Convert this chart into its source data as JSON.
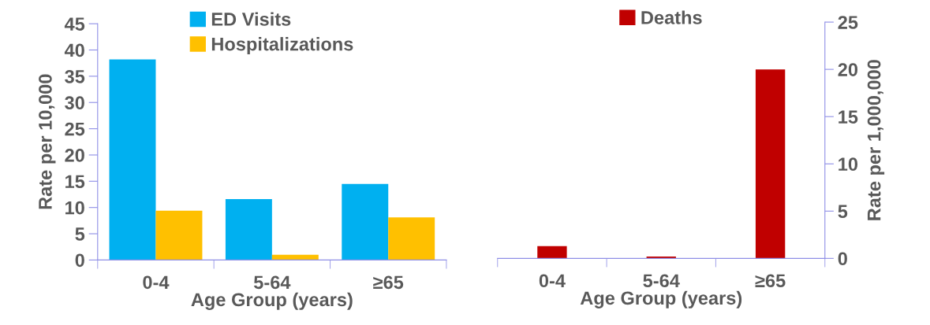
{
  "chart_data": [
    {
      "type": "bar",
      "categories": [
        "0-4",
        "5-64",
        "≥65"
      ],
      "xlabel": "Age Group (years)",
      "ylabel": "Rate per 10,000",
      "ylim": [
        0,
        45
      ],
      "yticks": [
        0,
        5,
        10,
        15,
        20,
        25,
        30,
        35,
        40,
        45
      ],
      "legend": "top",
      "grid": false,
      "series": [
        {
          "name": "ED Visits",
          "color": "#00b0f0",
          "values": [
            38.2,
            11.6,
            14.5
          ]
        },
        {
          "name": "Hospitalizations",
          "color": "#ffc000",
          "values": [
            9.4,
            1.0,
            8.1
          ]
        }
      ]
    },
    {
      "type": "bar",
      "categories": [
        "0-4",
        "5-64",
        "≥65"
      ],
      "xlabel": "Age Group (years)",
      "y2label": "Rate per 1,000,000",
      "y2lim": [
        0,
        25
      ],
      "y2ticks": [
        0,
        5,
        10,
        15,
        20,
        25
      ],
      "legend": "top",
      "grid": false,
      "series": [
        {
          "name": "Deaths",
          "color": "#c00000",
          "axis": "y2",
          "values": [
            1.3,
            0.2,
            20.0
          ]
        }
      ]
    }
  ]
}
